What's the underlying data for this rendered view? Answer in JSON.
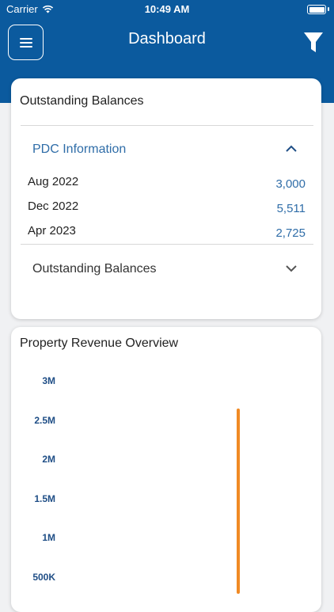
{
  "status_bar": {
    "carrier": "Carrier",
    "time": "10:49 AM",
    "icons": [
      "wifi-icon",
      "battery-icon"
    ]
  },
  "nav": {
    "title": "Dashboard",
    "menu_icon": "hamburger-menu-icon",
    "filter_icon": "filter-funnel-icon"
  },
  "outstanding_card": {
    "title": "Outstanding Balances",
    "pdc_section": {
      "label": "PDC Information",
      "expanded": true,
      "rows": [
        {
          "month": "Aug 2022",
          "amount": "3,000"
        },
        {
          "month": "Dec 2022",
          "amount": "5,511"
        },
        {
          "month": "Apr 2023",
          "amount": "2,725"
        }
      ]
    },
    "balances_section": {
      "label": "Outstanding Balances",
      "expanded": false
    }
  },
  "revenue_card": {
    "title": "Property Revenue Overview"
  },
  "colors": {
    "header": "#0b5a9e",
    "accent_text": "#2f6da8",
    "bar": "#f08a24",
    "tick_text": "#1f4e86"
  },
  "chart_data": {
    "type": "bar",
    "y_ticks": [
      "3M",
      "2.5M",
      "2M",
      "1.5M",
      "1M",
      "500K"
    ],
    "series": [
      {
        "values": [
          2650000
        ]
      }
    ],
    "ylim": [
      0,
      3000000
    ],
    "grid": false,
    "legend": "none"
  }
}
